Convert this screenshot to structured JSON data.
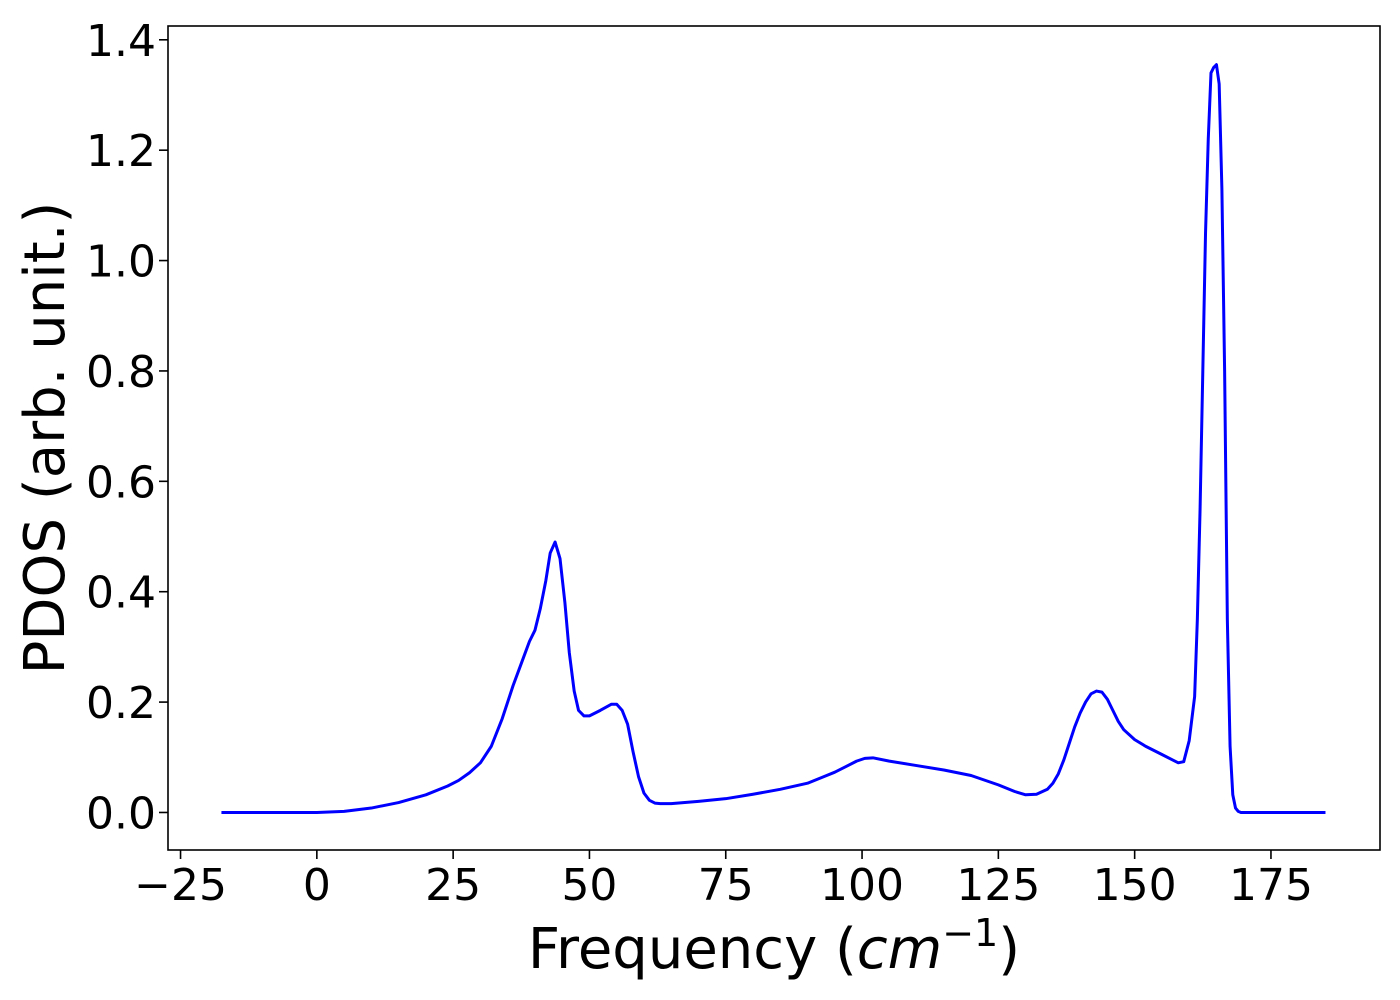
{
  "chart_data": {
    "type": "line",
    "xlabel_main": "Frequency (",
    "xlabel_unit_base": "cm",
    "xlabel_unit_exp": "−1",
    "xlabel_close": ")",
    "ylabel": "PDOS (arb. unit.)",
    "xlim": [
      -27.3,
      195.0
    ],
    "ylim": [
      -0.068,
      1.425
    ],
    "xticks": [
      -25,
      0,
      25,
      50,
      75,
      100,
      125,
      150,
      175
    ],
    "xtick_labels": [
      "−25",
      "0",
      "25",
      "50",
      "75",
      "100",
      "125",
      "150",
      "175"
    ],
    "yticks": [
      0.0,
      0.2,
      0.4,
      0.6,
      0.8,
      1.0,
      1.2,
      1.4
    ],
    "ytick_labels": [
      "0.0",
      "0.2",
      "0.4",
      "0.6",
      "0.8",
      "1.0",
      "1.2",
      "1.4"
    ],
    "grid": false,
    "legend": "none",
    "series": [
      {
        "color": "#0000ff",
        "x": [
          -17.5,
          -10,
          -5,
          0,
          5,
          10,
          15,
          20,
          24,
          26,
          28,
          30,
          32,
          34,
          36,
          37.5,
          39,
          40,
          41,
          42,
          42.8,
          43.7,
          44.6,
          45.5,
          46.3,
          47.2,
          48,
          49,
          50,
          52,
          54,
          55,
          56,
          57,
          58,
          59,
          60,
          61,
          62,
          63,
          65,
          70,
          75,
          80,
          85,
          90,
          93,
          95,
          97,
          99,
          100.5,
          102,
          105,
          110,
          115,
          120,
          125,
          128,
          130,
          132,
          134,
          135,
          136,
          137,
          138,
          139,
          140,
          141,
          142,
          143,
          144,
          145,
          146,
          147,
          148,
          150,
          152,
          155,
          157,
          158,
          159,
          160,
          161,
          161.5,
          162,
          162.5,
          163,
          163.5,
          164,
          164.5,
          165,
          165.5,
          166,
          166.5,
          167,
          167.5,
          168,
          168.5,
          169,
          169.5,
          170,
          170.5,
          171,
          172,
          173,
          174,
          175,
          180,
          185
        ],
        "y": [
          0.0,
          0.0,
          0.0,
          0.0,
          0.002,
          0.008,
          0.018,
          0.032,
          0.048,
          0.058,
          0.072,
          0.09,
          0.12,
          0.17,
          0.23,
          0.27,
          0.31,
          0.33,
          0.37,
          0.42,
          0.47,
          0.49,
          0.46,
          0.38,
          0.29,
          0.22,
          0.185,
          0.175,
          0.175,
          0.185,
          0.196,
          0.196,
          0.185,
          0.16,
          0.11,
          0.065,
          0.035,
          0.022,
          0.017,
          0.016,
          0.016,
          0.02,
          0.025,
          0.033,
          0.042,
          0.053,
          0.065,
          0.073,
          0.083,
          0.093,
          0.098,
          0.099,
          0.093,
          0.085,
          0.077,
          0.067,
          0.05,
          0.038,
          0.032,
          0.033,
          0.042,
          0.053,
          0.07,
          0.095,
          0.125,
          0.155,
          0.18,
          0.2,
          0.215,
          0.22,
          0.218,
          0.205,
          0.185,
          0.165,
          0.15,
          0.132,
          0.12,
          0.105,
          0.095,
          0.09,
          0.092,
          0.13,
          0.21,
          0.35,
          0.55,
          0.8,
          1.05,
          1.22,
          1.34,
          1.35,
          1.355,
          1.32,
          1.13,
          0.8,
          0.35,
          0.12,
          0.032,
          0.008,
          0.002,
          0.0,
          0.0,
          0.0,
          0.0,
          0.0,
          0.0,
          0.0,
          0.0,
          0.0,
          0.0
        ]
      }
    ]
  }
}
